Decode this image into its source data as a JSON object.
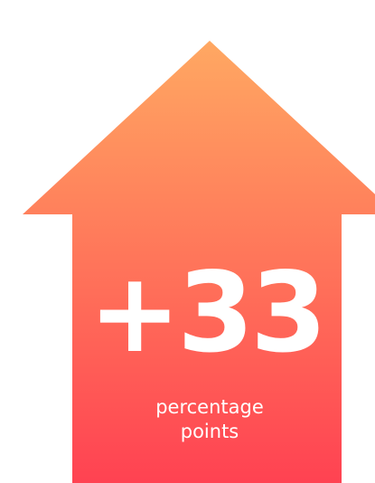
{
  "headline": "+33",
  "caption": {
    "line1": "percentage",
    "line2": "points"
  }
}
